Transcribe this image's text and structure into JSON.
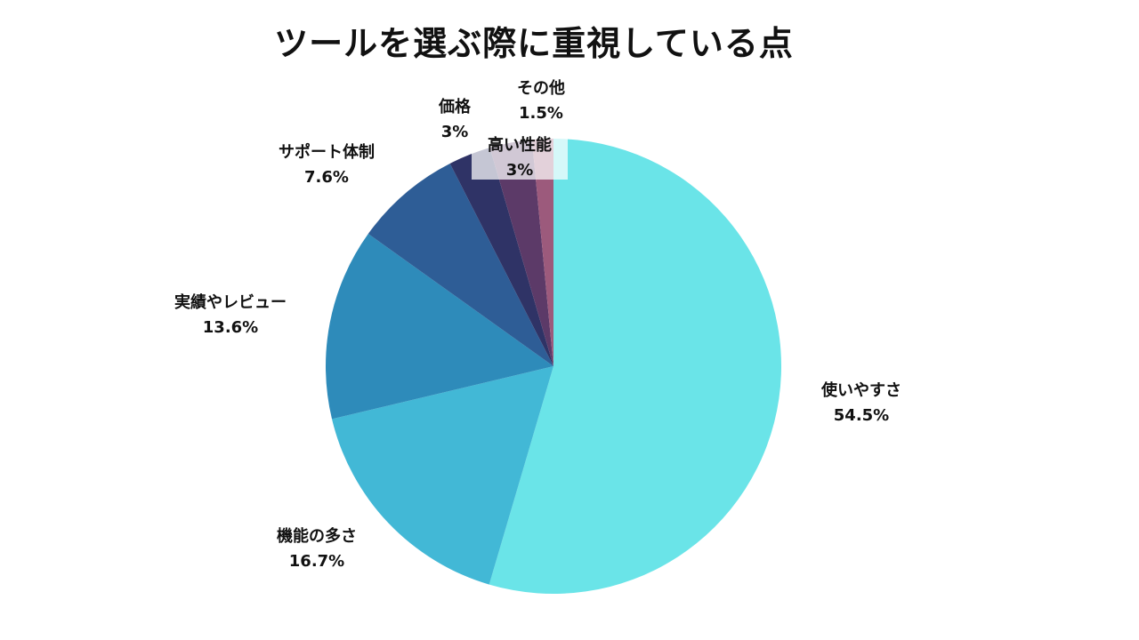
{
  "chart_data": {
    "type": "pie",
    "title": "ツールを選ぶ際に重視している点",
    "categories": [
      "使いやすさ",
      "機能の多さ",
      "実績やレビュー",
      "サポート体制",
      "価格",
      "高い性能",
      "その他"
    ],
    "values": [
      54.5,
      16.7,
      13.6,
      7.6,
      3,
      3,
      1.5
    ],
    "value_labels": [
      "54.5%",
      "16.7%",
      "13.6%",
      "7.6%",
      "3%",
      "3%",
      "1.5%"
    ],
    "colors": [
      "#6AE4E8",
      "#42B8D6",
      "#2E8BBA",
      "#2E5D96",
      "#2F3366",
      "#5C3A68",
      "#9C5A7C"
    ],
    "start": "top, clockwise",
    "legend": "none, labels placed outside slices"
  }
}
